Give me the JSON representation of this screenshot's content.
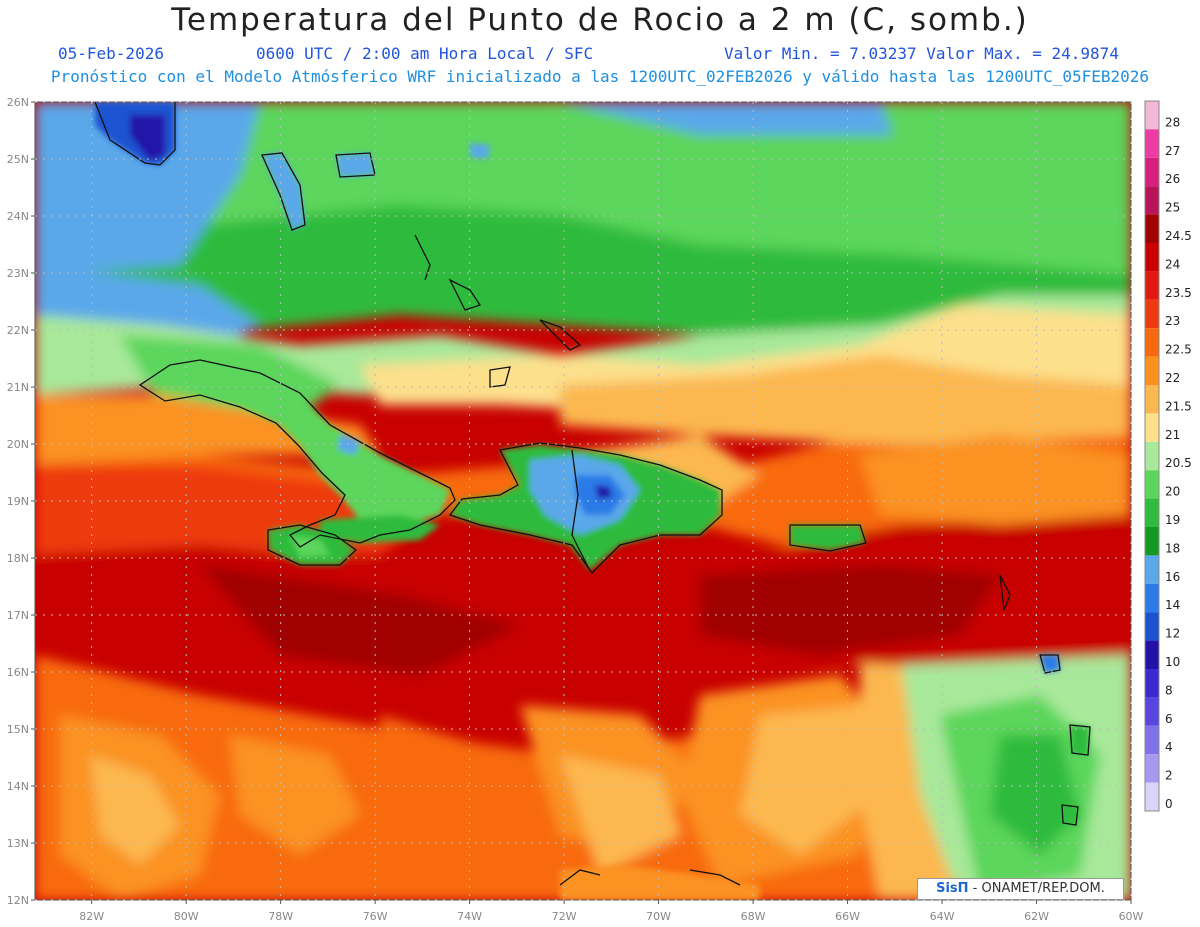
{
  "header": {
    "title": "Temperatura del Punto de Rocio a 2 m (C, somb.)",
    "date": "05-Feb-2026",
    "time_info": "0600 UTC / 2:00 am Hora Local / SFC",
    "min_max": "Valor Min. = 7.03237   Valor Max. = 24.9874",
    "model_info": "Pronóstico con el Modelo Atmósferico WRF inicializado a las 1200UTC_02FEB2026 y válido hasta las  1200UTC_05FEB2026"
  },
  "map": {
    "lat_labels": [
      "26N",
      "25N",
      "24N",
      "23N",
      "22N",
      "21N",
      "20N",
      "19N",
      "18N",
      "17N",
      "16N",
      "15N",
      "14N",
      "13N",
      "12N"
    ],
    "lon_labels": [
      "82W",
      "80W",
      "78W",
      "76W",
      "74W",
      "72W",
      "70W",
      "68W",
      "66W",
      "64W",
      "62W",
      "60W"
    ],
    "lon_range": [
      -83.2,
      -60
    ],
    "lat_range": [
      12,
      26
    ],
    "grid": true
  },
  "legend": {
    "levels": [
      "28",
      "27",
      "26",
      "25",
      "24.5",
      "24",
      "23.5",
      "23",
      "22.5",
      "22",
      "21.5",
      "21",
      "20.5",
      "20",
      "19",
      "18",
      "16",
      "14",
      "12",
      "10",
      "8",
      "6",
      "4",
      "2",
      "0"
    ],
    "colors": [
      "#f4b8d8",
      "#ec3ca4",
      "#d81e7c",
      "#b8145a",
      "#a00000",
      "#c80000",
      "#e01810",
      "#ee3a10",
      "#f86a10",
      "#fb9220",
      "#fcb850",
      "#fde08c",
      "#a8e89a",
      "#5cd65c",
      "#2ebb3e",
      "#129a22",
      "#5aa8ea",
      "#2a7ae8",
      "#1a52d0",
      "#2412a8",
      "#3a2ad0",
      "#5a44e0",
      "#8070ea",
      "#a898f2",
      "#d8d4fa"
    ]
  },
  "credit": {
    "brand": "SisΠ",
    "text": "- ONAMET/REP.DOM."
  }
}
